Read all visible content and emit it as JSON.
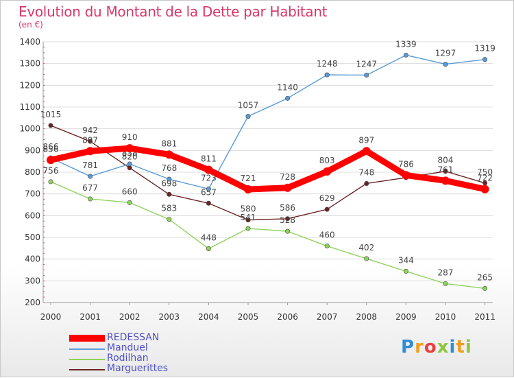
{
  "title": "Evolution du Montant de la Dette par Habitant",
  "subtitle": "(en €)",
  "logo": "Proxiti",
  "chart_data": {
    "type": "line",
    "title": "Evolution du Montant de la Dette par Habitant",
    "ylabel": "(en €)",
    "xlabel": "",
    "ylim": [
      200,
      1400
    ],
    "yticks": [
      200,
      300,
      400,
      500,
      600,
      700,
      800,
      900,
      1000,
      1100,
      1200,
      1300,
      1400
    ],
    "categories": [
      "2000",
      "2001",
      "2002",
      "2003",
      "2004",
      "2005",
      "2006",
      "2007",
      "2008",
      "2009",
      "2010",
      "2011"
    ],
    "grid": "horizontal",
    "legend": "bottom-left",
    "series": [
      {
        "name": "Marguerittes",
        "color": "#6b2323",
        "values": [
          1015,
          942,
          820,
          698,
          657,
          580,
          586,
          629,
          748,
          775,
          804,
          750
        ],
        "labels": [
          "1015",
          "942",
          "820",
          "698",
          "657",
          "580",
          "586",
          "629",
          "748",
          "",
          "804",
          "750"
        ]
      },
      {
        "name": "Rodilhan",
        "color": "#8ed35a",
        "values": [
          756,
          677,
          660,
          583,
          448,
          541,
          528,
          460,
          402,
          344,
          287,
          265
        ],
        "labels": [
          "756",
          "677",
          "660",
          "583",
          "448",
          "541",
          "528",
          "460",
          "402",
          "344",
          "287",
          "265"
        ]
      },
      {
        "name": "Manduel",
        "color": "#5a9ad6",
        "values": [
          866,
          781,
          838,
          768,
          723,
          1057,
          1140,
          1248,
          1247,
          1339,
          1297,
          1319
        ],
        "labels": [
          "866",
          "781",
          "838",
          "768",
          "723",
          "1057",
          "1140",
          "1248",
          "1247",
          "1339",
          "1297",
          "1319"
        ]
      },
      {
        "name": "REDESSAN",
        "color": "#ff0000",
        "values": [
          856,
          897,
          910,
          881,
          811,
          721,
          728,
          803,
          897,
          786,
          761,
          722
        ],
        "labels": [
          "856",
          "897",
          "910",
          "881",
          "811",
          "721",
          "728",
          "803",
          "897",
          "786",
          "761",
          "722"
        ]
      }
    ]
  }
}
